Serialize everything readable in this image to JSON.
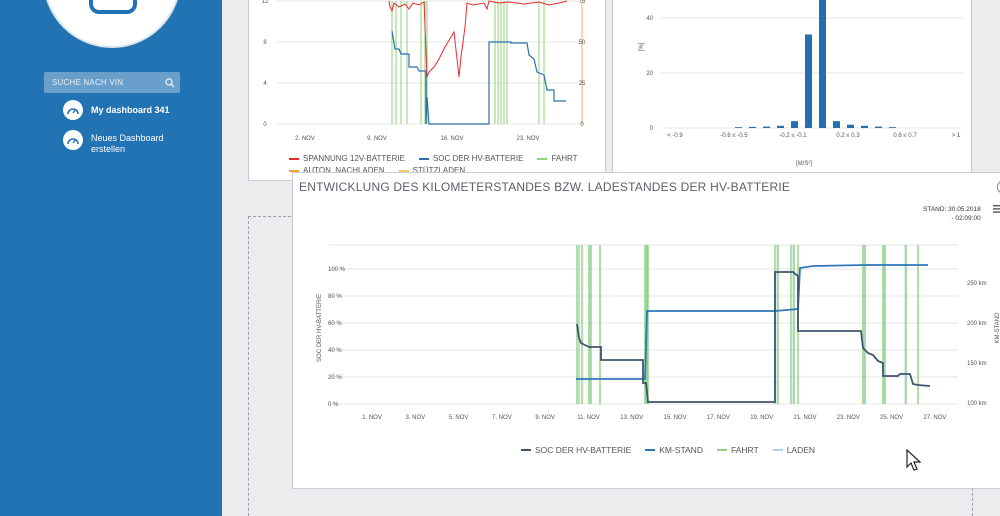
{
  "sidebar": {
    "search_placeholder": "SUCHE NACH VIN",
    "items": [
      {
        "label": "My dashboard 341",
        "icon": "gauge-icon"
      },
      {
        "label_line1": "Neues Dashboard",
        "label_line2": "erstellen",
        "icon": "gauge-add-icon"
      }
    ]
  },
  "chart_top_left": {
    "type": "line",
    "x_ticks": [
      "2. NOV",
      "9. NOV",
      "16. NOV",
      "23. NOV"
    ],
    "y_left_ticks": [
      "0",
      "4",
      "8",
      "12"
    ],
    "y_right_ticks": [
      "0",
      "25",
      "50",
      "75"
    ],
    "legend": [
      "SPANNUNG 12V-BATTERIE",
      "SOC DER HV-BATTERIE",
      "FAHRT",
      "AUTON. NACHLADEN",
      "STÜTZLADEN"
    ],
    "colors": {
      "voltage": "#e82c2c",
      "soc": "#2f6fad",
      "fahrt": "#8fd27a",
      "auton": "#f0a23a",
      "stuetz": "#f6c86a"
    }
  },
  "chart_top_right": {
    "type": "bar",
    "categories": [
      "< -0.9",
      "-0.6 ≤ -0.5",
      "-0.2 ≤ -0.1",
      "0.2 ≤ 0.3",
      "0.6 ≤ 0.7",
      "> 1"
    ],
    "y_ticks": [
      "0",
      "20",
      "40"
    ],
    "ylabel": "[%]",
    "xlabel": "[M/S²]",
    "bars": [
      0.3,
      0.4,
      0.5,
      0.8,
      2.5,
      34,
      48,
      2.5,
      1.2,
      0.8,
      0.5,
      0.3
    ],
    "color": "#2270b0"
  },
  "main_chart": {
    "title": "ENTWICKLUNG DES KILOMETERSTANDES BZW. LADESTANDES DER HV-BATTERIE",
    "stand_line1": "STAND: 30.05.2018",
    "stand_line2": "- 02:09:00",
    "ylabel_left": "SOC DER HV-BATTERIE",
    "ylabel_right": "KM-STAND",
    "y_left_ticks": [
      "0 %",
      "20 %",
      "40 %",
      "60 %",
      "80 %",
      "100 %"
    ],
    "y_right_ticks": [
      "100 km",
      "150 km",
      "200 km",
      "250 km"
    ],
    "x_ticks": [
      "1. NOV",
      "3. NOV",
      "5. NOV",
      "7. NOV",
      "9. NOV",
      "11. NOV",
      "13. NOV",
      "15. NOV",
      "17. NOV",
      "19. NOV",
      "21. NOV",
      "23. NOV",
      "25. NOV",
      "27. NOV"
    ],
    "legend": [
      {
        "label": "SOC DER HV-BATTERIE",
        "color": "#3f556e"
      },
      {
        "label": "KM-STAND",
        "color": "#2e78b7"
      },
      {
        "label": "FAHRT",
        "color": "#8fd27a"
      },
      {
        "label": "LADEN",
        "color": "#a9d2ef"
      }
    ]
  }
}
